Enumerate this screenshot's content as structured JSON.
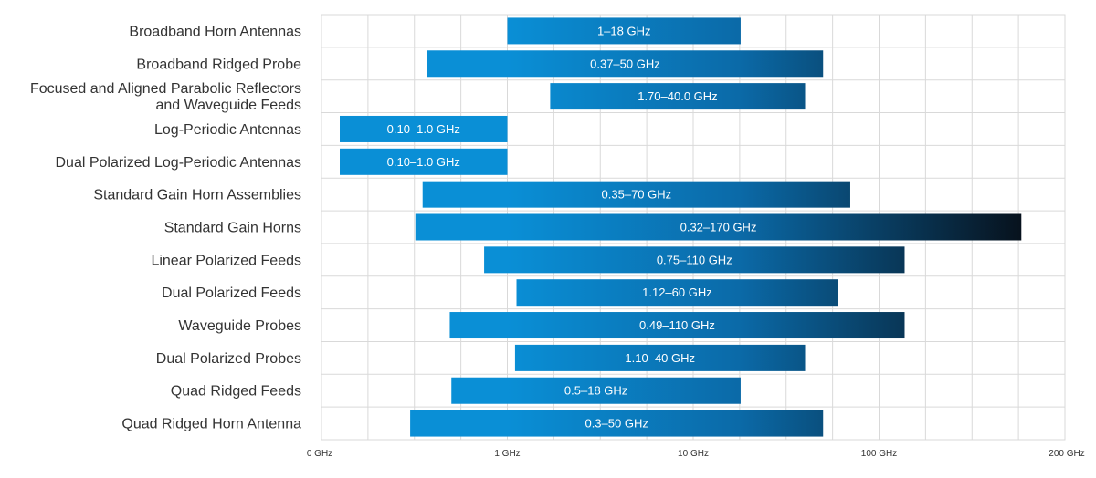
{
  "chart_data": {
    "type": "bar",
    "orientation": "horizontal-range",
    "title": "",
    "xlabel": "",
    "ylabel": "",
    "x_scale": "custom-log",
    "x_ticks": [
      {
        "label": "0 GHz",
        "value": 0.1
      },
      {
        "label": "1 GHz",
        "value": 1
      },
      {
        "label": "10 GHz",
        "value": 10
      },
      {
        "label": "100 GHz",
        "value": 100
      },
      {
        "label": "200 GHz",
        "value": 200
      }
    ],
    "grid": true,
    "legend": "none",
    "bars": [
      {
        "category": "Broadband Horn Antennas",
        "start": 1,
        "end": 18,
        "label": "1–18 GHz"
      },
      {
        "category": "Broadband Ridged Probe",
        "start": 0.37,
        "end": 50,
        "label": "0.37–50 GHz"
      },
      {
        "category": "Focused and Aligned Parabolic Reflectors\nand Waveguide Feeds",
        "start": 1.7,
        "end": 40,
        "label": "1.70–40.0 GHz"
      },
      {
        "category": "Log-Periodic Antennas",
        "start": 0.1,
        "end": 1.0,
        "label": "0.10–1.0 GHz"
      },
      {
        "category": "Dual Polarized Log-Periodic Antennas",
        "start": 0.1,
        "end": 1.0,
        "label": "0.10–1.0 GHz"
      },
      {
        "category": "Standard Gain Horn Assemblies",
        "start": 0.35,
        "end": 70,
        "label": "0.35–70 GHz"
      },
      {
        "category": "Standard Gain Horns",
        "start": 0.32,
        "end": 170,
        "label": "0.32–170 GHz"
      },
      {
        "category": "Linear Polarized Feeds",
        "start": 0.75,
        "end": 110,
        "label": "0.75–110 GHz"
      },
      {
        "category": "Dual Polarized Feeds",
        "start": 1.12,
        "end": 60,
        "label": "1.12–60 GHz"
      },
      {
        "category": "Waveguide Probes",
        "start": 0.49,
        "end": 110,
        "label": "0.49–110 GHz"
      },
      {
        "category": "Dual Polarized Probes",
        "start": 1.1,
        "end": 40,
        "label": "1.10–40 GHz"
      },
      {
        "category": "Quad Ridged Feeds",
        "start": 0.5,
        "end": 18,
        "label": "0.5–18 GHz"
      },
      {
        "category": "Quad Ridged Horn Antenna",
        "start": 0.3,
        "end": 50,
        "label": "0.3–50 GHz"
      }
    ]
  },
  "colors": {
    "bar_start": "#0a8fd6",
    "bar_mid": "#0b6aa8",
    "bar_end": "#07121d",
    "grid": "#d9d9d9",
    "text": "#333333"
  }
}
